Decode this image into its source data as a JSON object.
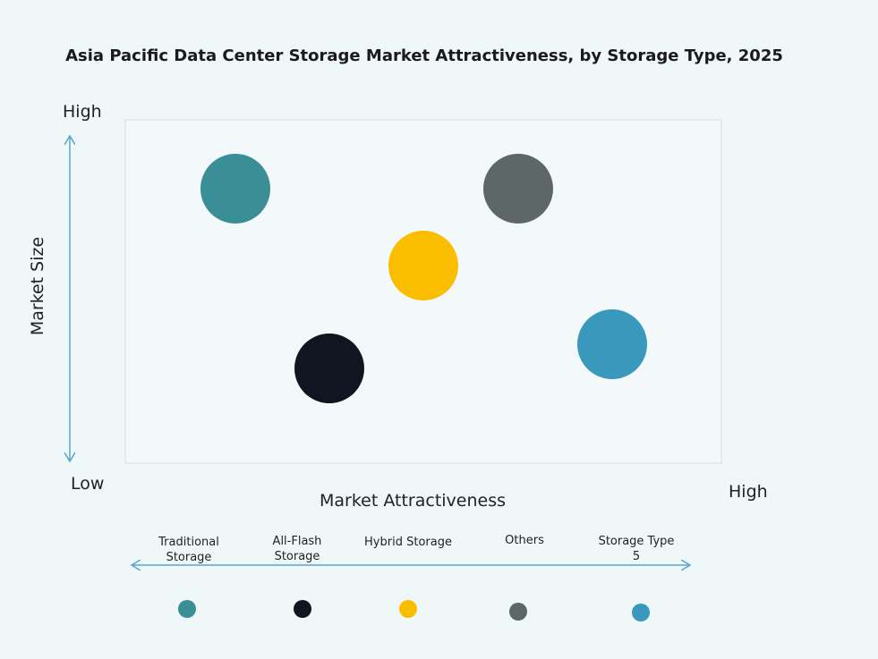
{
  "header": {
    "title": "Asia Pacific Data Center Storage Market Attractiveness,  by Storage Type, 2025"
  },
  "axes": {
    "y_label": "Market Size",
    "y_high": "High",
    "y_low": "Low",
    "x_label": "Market Attractiveness",
    "x_high": "High"
  },
  "items": [
    {
      "label": "Traditional Storage",
      "color": "#3a8f96"
    },
    {
      "label": "All-Flash Storage",
      "color": "#10161f"
    },
    {
      "label": "Hybrid Storage",
      "color": "#fbbd00"
    },
    {
      "label": "Others",
      "color": "#5c6766"
    },
    {
      "label": "Storage Type 5",
      "color": "#3b98bd"
    }
  ]
}
